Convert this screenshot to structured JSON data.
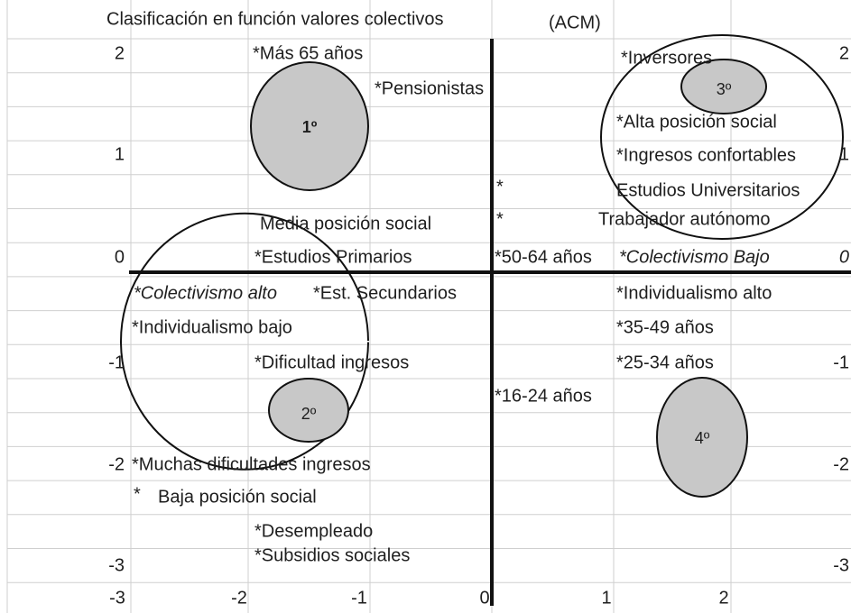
{
  "title": "Clasificación en función valores colectivos",
  "subtitle": "(ACM)",
  "left_axis": [
    "2",
    "1",
    "0",
    "-1",
    "-2",
    "-3"
  ],
  "right_axis": [
    "2",
    "1",
    "0",
    "-1",
    "-2",
    "-3"
  ],
  "bottom_axis": [
    "-3",
    "-2",
    "-1",
    "0",
    "1",
    "2"
  ],
  "labels": [
    "*Más 65 años",
    "*Pensionistas",
    "*Inversores",
    "*Alta posición social",
    "*Ingresos confortables",
    "*",
    "Estudios Universitarios",
    "Media posición social",
    "*",
    "Trabajador autónomo",
    "*Estudios Primarios",
    "*50-64 años",
    "*Colectivismo Bajo",
    "*Colectivismo alto",
    "*Est. Secundarios",
    "*Individualismo alto",
    "*Individualismo bajo",
    "*35-49 años",
    "*Dificultad ingresos",
    "*25-34 años",
    "*16-24 años",
    "*Muchas dificultades ingresos",
    "*",
    "Baja posición social",
    "*Desempleado",
    "*Subsidios sociales"
  ],
  "clusters": [
    "1º",
    "2º",
    "3º",
    "4º"
  ]
}
